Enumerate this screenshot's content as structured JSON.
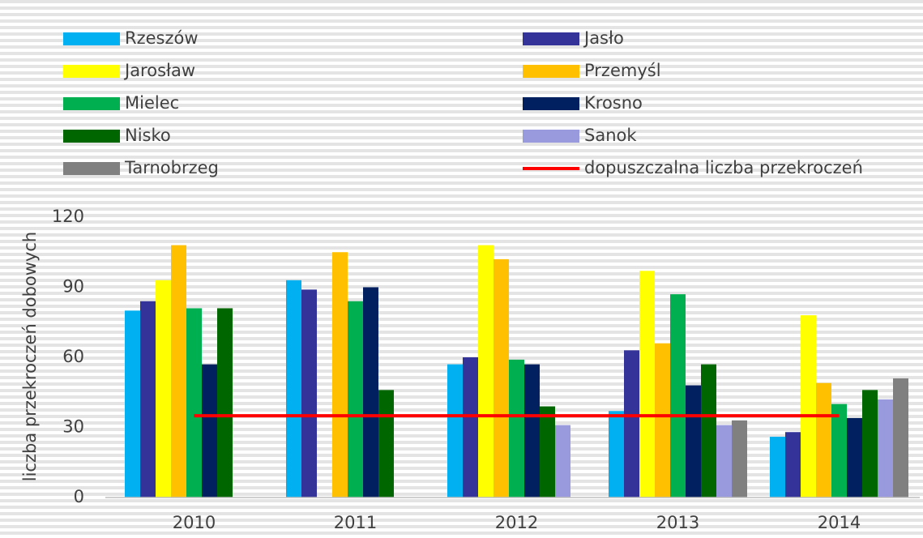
{
  "chart_data": {
    "type": "bar",
    "y_label": "liczba przekroczeń dobowych",
    "categories": [
      "2010",
      "2011",
      "2012",
      "2013",
      "2014"
    ],
    "series": [
      {
        "name": "Rzeszów",
        "color": "#00b0f0",
        "values": [
          80,
          93,
          57,
          37,
          26
        ]
      },
      {
        "name": "Jasło",
        "color": "#333399",
        "values": [
          84,
          89,
          60,
          63,
          28
        ]
      },
      {
        "name": "Jarosław",
        "color": "#ffff00",
        "values": [
          93,
          null,
          108,
          97,
          78
        ]
      },
      {
        "name": "Przemyśl",
        "color": "#ffc000",
        "values": [
          108,
          105,
          102,
          66,
          49
        ]
      },
      {
        "name": "Mielec",
        "color": "#00b050",
        "values": [
          81,
          84,
          59,
          87,
          40
        ]
      },
      {
        "name": "Krosno",
        "color": "#002060",
        "values": [
          57,
          90,
          57,
          48,
          34
        ]
      },
      {
        "name": "Nisko",
        "color": "#006600",
        "values": [
          81,
          46,
          39,
          57,
          46
        ]
      },
      {
        "name": "Sanok",
        "color": "#9999dd",
        "values": [
          null,
          null,
          31,
          31,
          42
        ]
      },
      {
        "name": "Tarnobrzeg",
        "color": "#808080",
        "values": [
          null,
          null,
          null,
          33,
          51
        ]
      },
      {
        "name": "dopuszczalna liczba przekroczeń",
        "color": "#ff0000",
        "type": "line",
        "values": [
          35,
          35,
          35,
          35,
          35
        ]
      }
    ],
    "ylim": [
      0,
      120
    ],
    "yticks": [
      0,
      30,
      60,
      90,
      120
    ],
    "grid": false
  }
}
